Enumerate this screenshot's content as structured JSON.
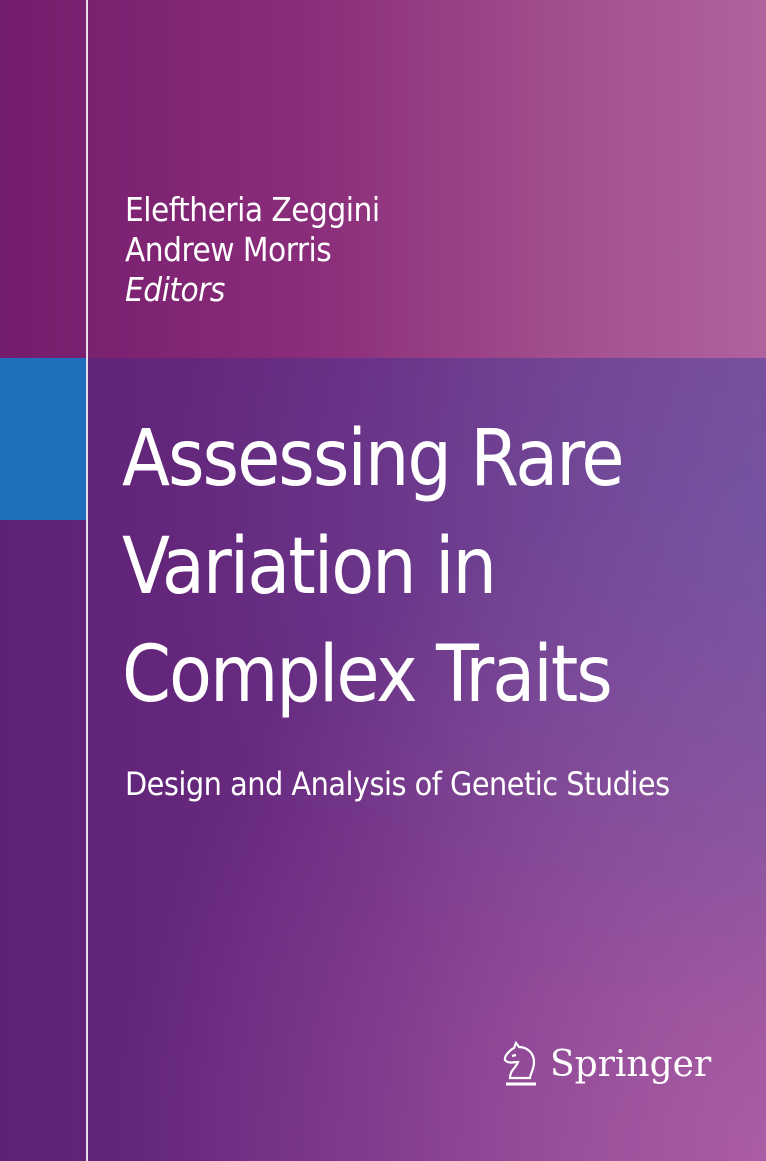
{
  "editors": [
    "Eleftheria Zeggini",
    "Andrew Morris"
  ],
  "editors_role": "Editors",
  "title_lines": [
    "Assessing Rare",
    "Variation in",
    "Complex Traits"
  ],
  "subtitle": "Design and Analysis of Genetic Studies",
  "publisher": {
    "name": "Springer",
    "logo_icon": "knight-horse-icon"
  },
  "colors": {
    "accent_block": "#1f6fba",
    "top_band": "#8a2c7a",
    "background": "#63307f",
    "text": "#ffffff"
  }
}
